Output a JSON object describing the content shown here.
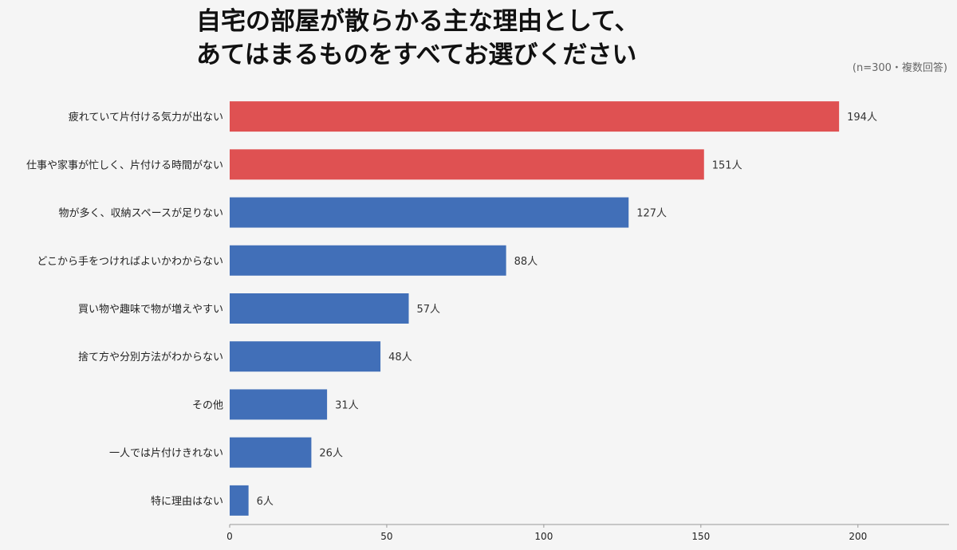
{
  "title_lines": [
    "自宅の部屋が散らかる主な理由として、",
    "あてはまるものをすべてお選びください"
  ],
  "note": "(n=300・複数回答)",
  "colors": {
    "highlight": "#df5152",
    "normal": "#416fb8",
    "axis": "#999999"
  },
  "chart_data": {
    "type": "bar",
    "orientation": "horizontal",
    "categories": [
      "疲れていて片付ける気力が出ない",
      "仕事や家事が忙しく、片付ける時間がない",
      "物が多く、収納スペースが足りない",
      "どこから手をつければよいかわからない",
      "買い物や趣味で物が増えやすい",
      "捨て方や分別方法がわからない",
      "その他",
      "一人では片付けきれない",
      "特に理由はない"
    ],
    "values": [
      194,
      151,
      127,
      88,
      57,
      48,
      31,
      26,
      6
    ],
    "value_labels": [
      "194人",
      "151人",
      "127人",
      "88人",
      "57人",
      "48人",
      "31人",
      "26人",
      "6人"
    ],
    "highlighted": [
      true,
      true,
      false,
      false,
      false,
      false,
      false,
      false,
      false
    ],
    "xlim": [
      0,
      229
    ],
    "xticks": [
      0,
      50,
      100,
      150,
      200
    ],
    "grid": false
  }
}
